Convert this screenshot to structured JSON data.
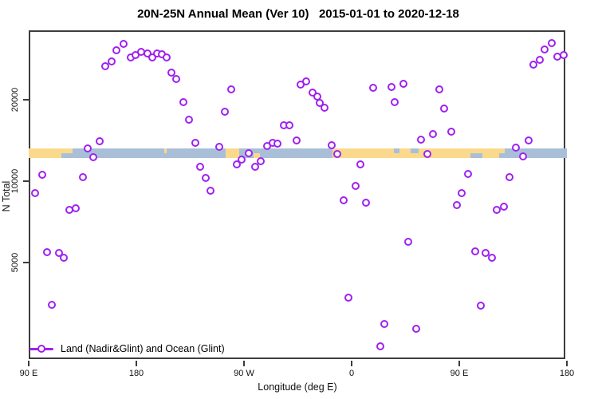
{
  "title": "20N-25N Annual Mean (Ver 10)   2015-01-01 to 2020-12-18",
  "legend": {
    "label": "Land (Nadir&Glint) and Ocean (Glint)"
  },
  "colors": {
    "point": "#A020F0",
    "land": "#FBD98C",
    "ocean": "#A9BFD8",
    "frame": "#3D3D3D"
  },
  "chart_data": {
    "type": "scatter",
    "title": "20N-25N Annual Mean (Ver 10)   2015-01-01 to 2020-12-18",
    "xlabel": "Longitude (deg E)",
    "ylabel": "N Total",
    "x_axis": {
      "range_deg": [
        90,
        540
      ],
      "ticks": [
        {
          "lon": 90,
          "label": "90 E"
        },
        {
          "lon": 180,
          "label": "180"
        },
        {
          "lon": 270,
          "label": "90 W"
        },
        {
          "lon": 360,
          "label": "0"
        },
        {
          "lon": 450,
          "label": "90 E"
        },
        {
          "lon": 540,
          "label": "180"
        }
      ]
    },
    "y_axis": {
      "scale": "log",
      "ticks": [
        {
          "value": 5000,
          "label": "5000"
        },
        {
          "value": 10000,
          "label": "10000"
        },
        {
          "value": 20000,
          "label": "20000"
        }
      ]
    },
    "legend_position": "bottom-left",
    "grid": false,
    "map_strip": {
      "description_visible": false,
      "land_segments": [
        {
          "from": 90,
          "to": 126.5,
          "part": "full"
        },
        {
          "from": 203,
          "to": 205.5,
          "part": "top"
        },
        {
          "from": 254.5,
          "to": 266,
          "part": "full"
        },
        {
          "from": 278,
          "to": 283,
          "part": "bottom"
        },
        {
          "from": 344,
          "to": 483,
          "part": "full"
        },
        {
          "from": 483,
          "to": 488,
          "part": "top"
        }
      ],
      "ocean_notches": [
        {
          "from": 117,
          "to": 126.5,
          "part": "bottom"
        },
        {
          "from": 395,
          "to": 400,
          "part": "top"
        },
        {
          "from": 409,
          "to": 416,
          "part": "top"
        },
        {
          "from": 459,
          "to": 469,
          "part": "bottom"
        }
      ]
    },
    "points_format": [
      "longitude_deg_plot_axis",
      "n_total"
    ],
    "points": [
      [
        154,
        26600
      ],
      [
        159,
        27700
      ],
      [
        163,
        30500
      ],
      [
        169,
        32200
      ],
      [
        175,
        28700
      ],
      [
        179,
        29300
      ],
      [
        184,
        30100
      ],
      [
        189,
        29700
      ],
      [
        193,
        28700
      ],
      [
        197,
        29700
      ],
      [
        201,
        29500
      ],
      [
        205,
        28700
      ],
      [
        209,
        25200
      ],
      [
        213,
        23900
      ],
      [
        219,
        19600
      ],
      [
        224,
        16900
      ],
      [
        229,
        13900
      ],
      [
        101,
        10560
      ],
      [
        95,
        9030
      ],
      [
        135,
        10350
      ],
      [
        139,
        13200
      ],
      [
        149,
        14050
      ],
      [
        144,
        12260
      ],
      [
        233,
        11300
      ],
      [
        238,
        10280
      ],
      [
        242,
        9200
      ],
      [
        124,
        7830
      ],
      [
        129,
        7940
      ],
      [
        105,
        5460
      ],
      [
        115,
        5430
      ],
      [
        119,
        5210
      ],
      [
        109,
        3490
      ],
      [
        259,
        21850
      ],
      [
        254,
        18070
      ],
      [
        303,
        16090
      ],
      [
        308,
        16090
      ],
      [
        317,
        22760
      ],
      [
        322,
        23380
      ],
      [
        327,
        21270
      ],
      [
        331,
        20550
      ],
      [
        333,
        19470
      ],
      [
        337,
        18690
      ],
      [
        314,
        14140
      ],
      [
        249,
        13400
      ],
      [
        274,
        12690
      ],
      [
        268,
        12020
      ],
      [
        264,
        11530
      ],
      [
        279,
        11300
      ],
      [
        284,
        11850
      ],
      [
        289,
        13490
      ],
      [
        294,
        13860
      ],
      [
        298,
        13770
      ],
      [
        343,
        13580
      ],
      [
        348,
        12600
      ],
      [
        367,
        11530
      ],
      [
        363,
        9600
      ],
      [
        353,
        8500
      ],
      [
        372,
        8320
      ],
      [
        378,
        22150
      ],
      [
        393,
        22300
      ],
      [
        396,
        19600
      ],
      [
        403,
        22900
      ],
      [
        433,
        21850
      ],
      [
        437,
        18560
      ],
      [
        443,
        15250
      ],
      [
        428,
        14930
      ],
      [
        418,
        14240
      ],
      [
        423,
        12600
      ],
      [
        508,
        14140
      ],
      [
        497,
        13310
      ],
      [
        503,
        12340
      ],
      [
        457,
        10630
      ],
      [
        492,
        10350
      ],
      [
        452,
        9030
      ],
      [
        512,
        26970
      ],
      [
        517,
        28090
      ],
      [
        521,
        30700
      ],
      [
        527,
        32400
      ],
      [
        532,
        28860
      ],
      [
        537,
        29270
      ],
      [
        448,
        8160
      ],
      [
        481,
        7830
      ],
      [
        487,
        8050
      ],
      [
        407,
        5960
      ],
      [
        463,
        5500
      ],
      [
        472,
        5430
      ],
      [
        477,
        5210
      ],
      [
        468,
        3465
      ],
      [
        414,
        2845
      ],
      [
        357,
        3710
      ],
      [
        387,
        2965
      ],
      [
        384,
        2435
      ]
    ]
  }
}
